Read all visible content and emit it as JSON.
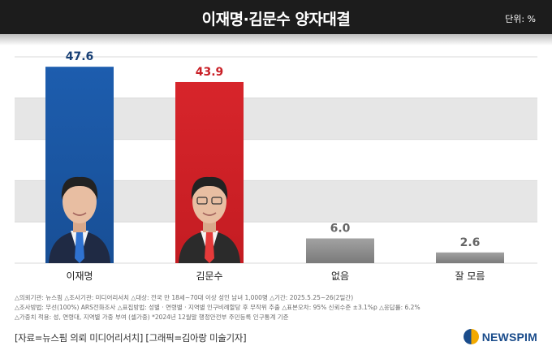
{
  "header": {
    "title": "이재명·김문수 양자대결",
    "unit": "단위: %"
  },
  "chart_data": {
    "type": "bar",
    "title": "이재명·김문수 양자대결",
    "categories": [
      "이재명",
      "김문수",
      "없음",
      "잘 모름"
    ],
    "values": [
      47.6,
      43.9,
      6.0,
      2.6
    ],
    "value_labels": [
      "47.6",
      "43.9",
      "6.0",
      "2.6"
    ],
    "ylim": [
      0,
      50
    ],
    "grid": true,
    "xlabel": "",
    "ylabel": "",
    "colors": {
      "lee": "#1d5dae",
      "kim": "#d7252b",
      "other": "#8b8b8b",
      "lee_label": "#173f75",
      "kim_label": "#c91f26",
      "other_label": "#666666"
    }
  },
  "notes": [
    "△의뢰기관: 뉴스핌  △조사기관: 미디어리서치  △대상: 전국 만 18세~70대 이상 성인 남녀 1,000명  △기간: 2025.5.25~26(2일간)",
    "△조사방법: 무선(100%) ARS전화조사  △표집방법: 성별 · 연령별 · 지역별 인구비례할당 후 무작위 추출  △표본오차: 95% 신뢰수준 ±3.1%p  △응답률: 6.2%",
    "△가중치 적용: 성, 연령대, 지역별 가중 부여 (셀가중) *2024년 12월말 행정안전부 주민등록 인구통계 기준"
  ],
  "footer": {
    "source": "[자료=뉴스핌 의뢰 미디어리서치] [그래픽=김아랑 미술기자]",
    "logo": "NEWSPIM"
  }
}
